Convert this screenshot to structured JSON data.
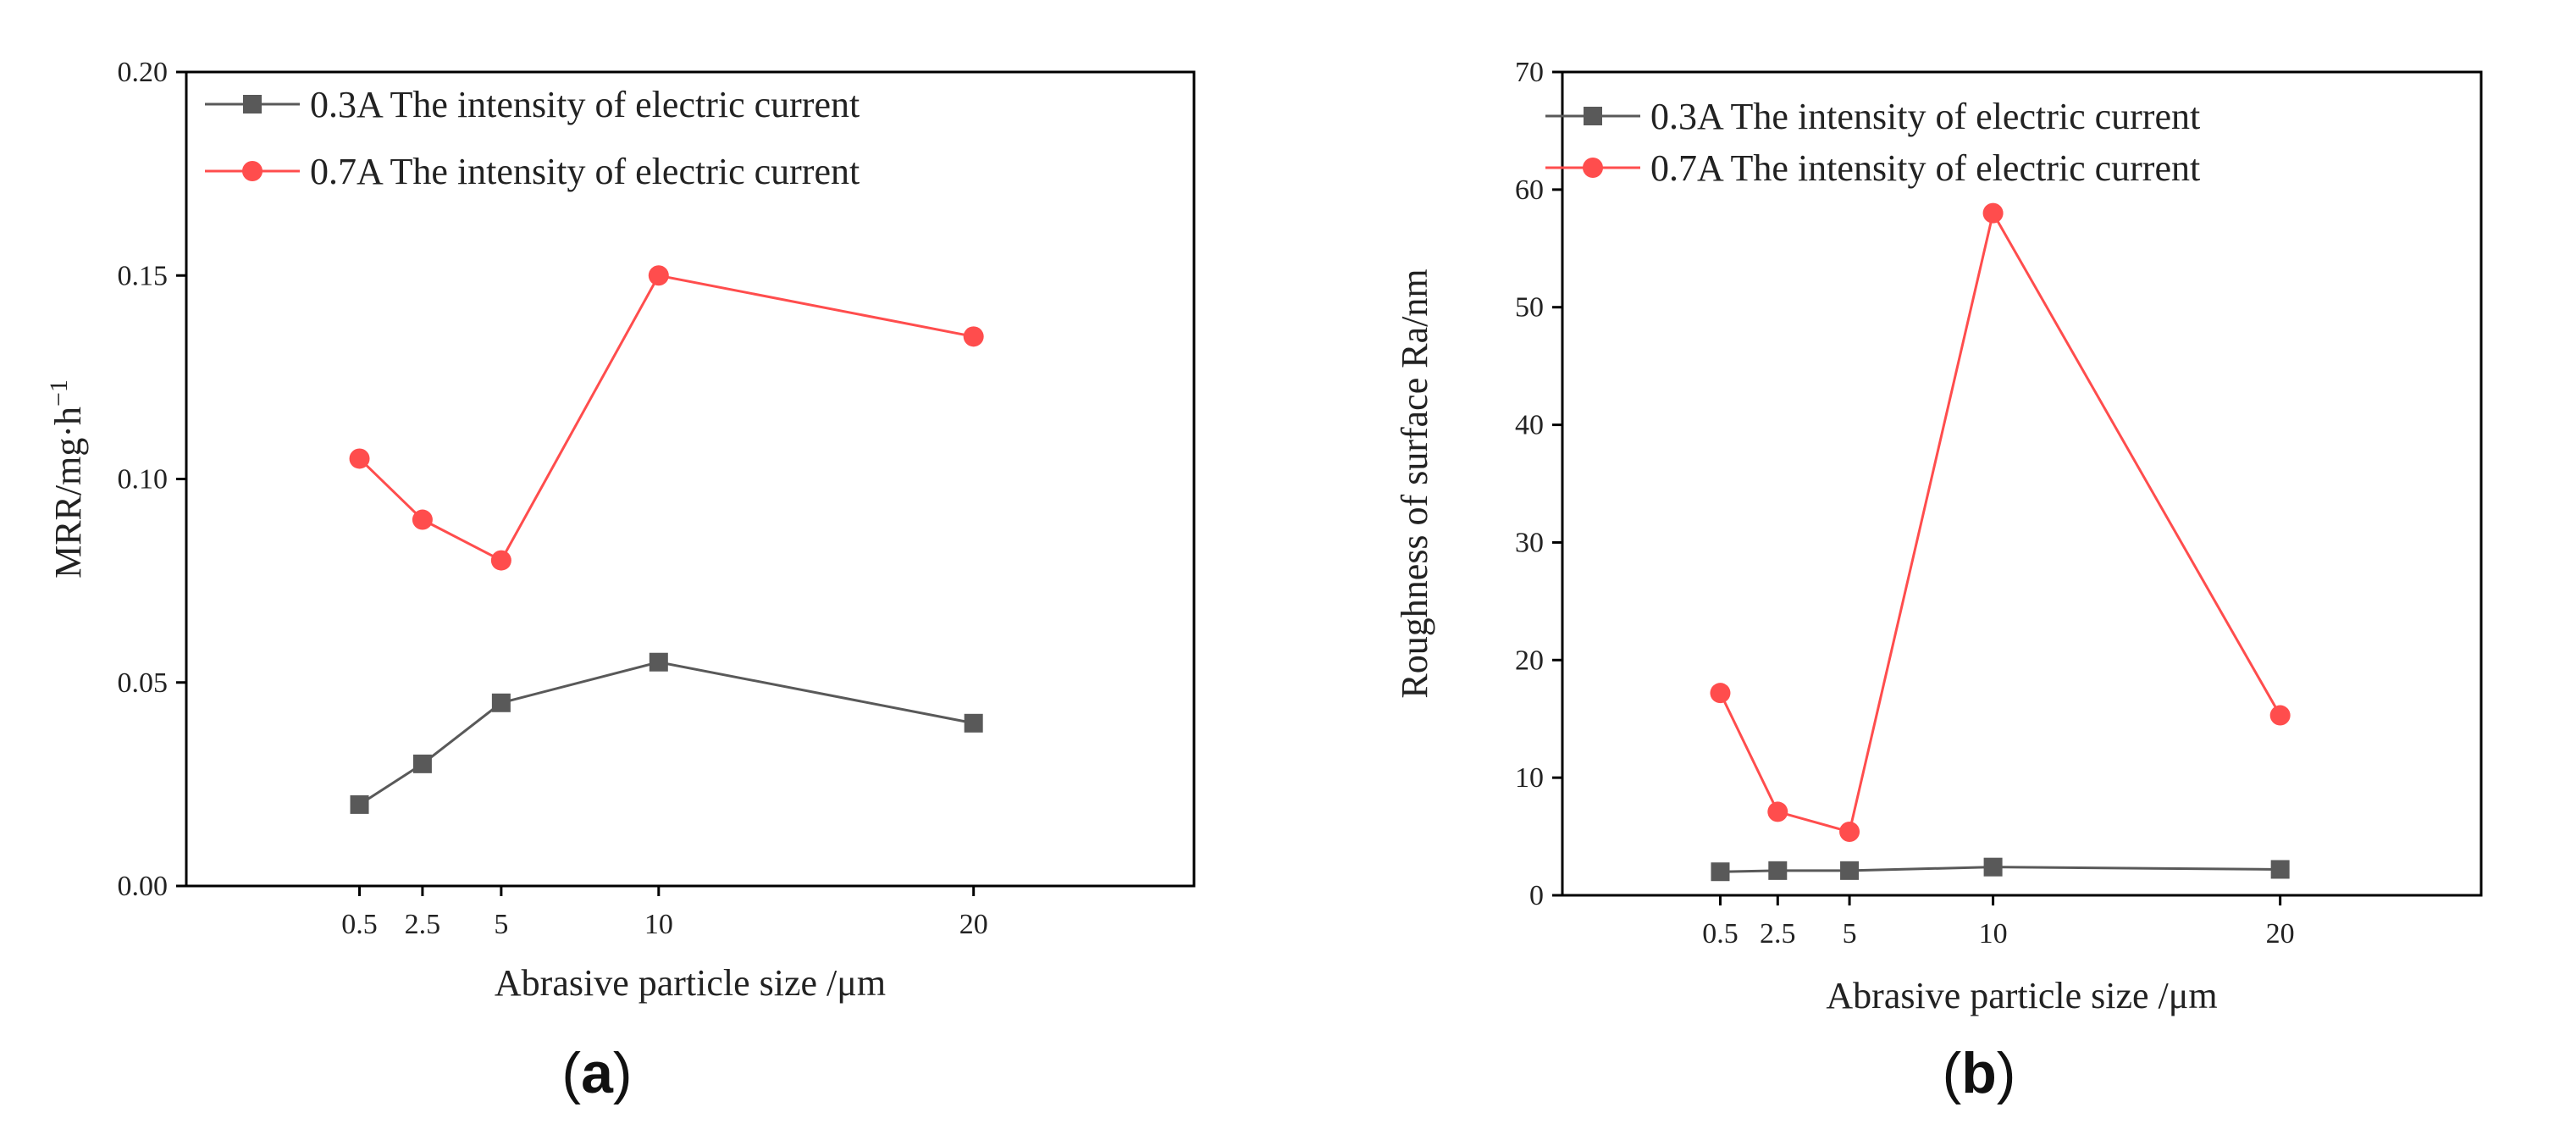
{
  "chart_data": [
    {
      "panel": "(a)",
      "panel_letter": "a",
      "type": "line",
      "title": "",
      "xlabel": "Abrasive particle size /μm",
      "ylabel_main": "MRR/mg·h",
      "ylabel_sup": "−1",
      "categories": [
        "0.5",
        "2.5",
        "5",
        "10",
        "20"
      ],
      "x": [
        0.5,
        2.5,
        5,
        10,
        20
      ],
      "xlim": [
        -5,
        27
      ],
      "ylim": [
        0,
        0.2
      ],
      "yticks": [
        0,
        0.05,
        0.1,
        0.15,
        0.2
      ],
      "yticklabels": [
        "0.00",
        "0.05",
        "0.10",
        "0.15",
        "0.20"
      ],
      "grid": false,
      "legend_position": "top-left",
      "series": [
        {
          "name": "0.3A The intensity of electric current",
          "marker": "square",
          "color": "#595959",
          "values": [
            0.02,
            0.03,
            0.045,
            0.055,
            0.04
          ]
        },
        {
          "name": "0.7A The intensity of electric current",
          "marker": "circle",
          "color": "#ff4d4d",
          "values": [
            0.105,
            0.09,
            0.08,
            0.15,
            0.135
          ]
        }
      ]
    },
    {
      "panel": "(b)",
      "panel_letter": "b",
      "type": "line",
      "title": "",
      "xlabel": "Abrasive particle size /μm",
      "ylabel_main": "Roughness of surface Ra/nm",
      "ylabel_sup": "",
      "categories": [
        "0.5",
        "2.5",
        "5",
        "10",
        "20"
      ],
      "x": [
        0.5,
        2.5,
        5,
        10,
        20
      ],
      "xlim": [
        -5,
        27
      ],
      "ylim": [
        0,
        70
      ],
      "yticks": [
        0,
        10,
        20,
        30,
        40,
        50,
        60,
        70
      ],
      "yticklabels": [
        "0",
        "10",
        "20",
        "30",
        "40",
        "50",
        "60",
        "70"
      ],
      "grid": false,
      "legend_position": "top-left",
      "series": [
        {
          "name": "0.3A The intensity of electric current",
          "marker": "square",
          "color": "#595959",
          "values": [
            2.0,
            2.1,
            2.1,
            2.4,
            2.2
          ]
        },
        {
          "name": "0.7A The intensity of electric current",
          "marker": "circle",
          "color": "#ff4d4d",
          "values": [
            17.2,
            7.1,
            5.4,
            58.0,
            15.3
          ]
        }
      ]
    }
  ]
}
